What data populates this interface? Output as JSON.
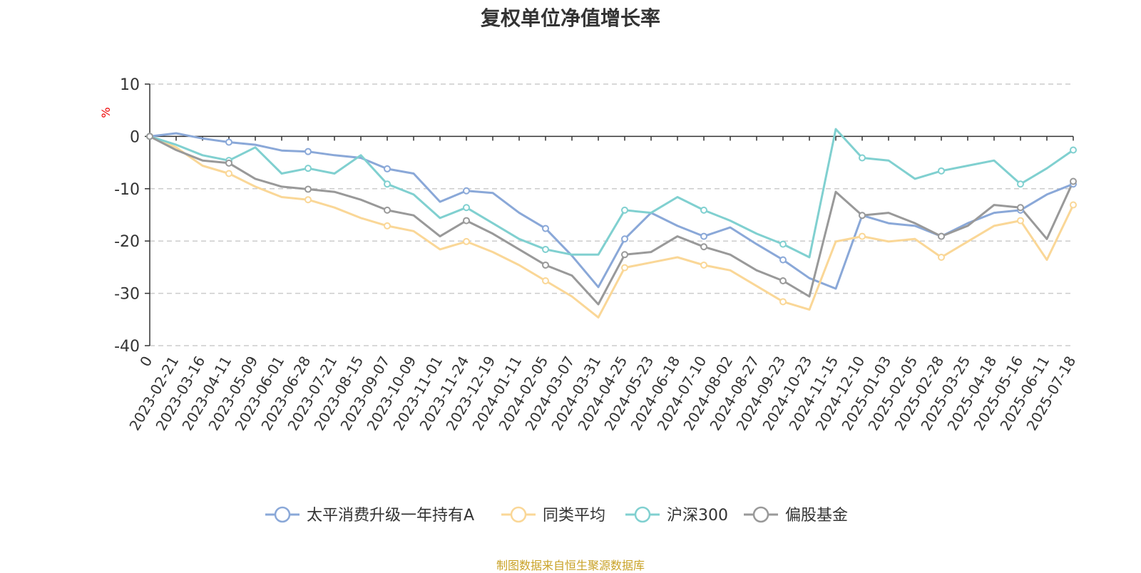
{
  "chart_data": {
    "type": "line",
    "title": "复权单位净值增长率",
    "ylabel": "%",
    "xlabel": "",
    "ylim": [
      -40,
      10
    ],
    "yticks": [
      "10",
      "0",
      "-10",
      "-20",
      "-30",
      "-40"
    ],
    "ytick_values": [
      10,
      0,
      -10,
      -20,
      -30,
      -40
    ],
    "x_tick_labels": [
      "0",
      "2023-02-21",
      "2023-03-16",
      "2023-04-11",
      "2023-05-09",
      "2023-06-01",
      "2023-06-28",
      "2023-07-21",
      "2023-08-15",
      "2023-09-07",
      "2023-10-09",
      "2023-11-01",
      "2023-11-24",
      "2023-12-19",
      "2024-01-11",
      "2024-02-05",
      "2024-03-07",
      "2024-03-31",
      "2024-04-25",
      "2024-05-23",
      "2024-06-18",
      "2024-07-10",
      "2024-08-02",
      "2024-08-27",
      "2024-09-23",
      "2024-10-23",
      "2024-11-15",
      "2024-12-10",
      "2025-01-03",
      "2025-02-05",
      "2025-02-28",
      "2025-03-25",
      "2025-04-18",
      "2025-05-16",
      "2025-06-11",
      "2025-07-18"
    ],
    "grid": "horizontal dashed",
    "legend_position": "bottom",
    "series": [
      {
        "name": "太平消费升级一年持有A",
        "color": "#8aa8d8",
        "values": [
          0,
          0.6,
          -0.4,
          -1.1,
          -1.6,
          -2.7,
          -2.9,
          -3.6,
          -4.1,
          -6.2,
          -7.1,
          -12.5,
          -10.4,
          -10.8,
          -14.6,
          -17.6,
          -22.8,
          -28.8,
          -19.6,
          -14.6,
          -17.1,
          -19.1,
          -17.4,
          -20.6,
          -23.6,
          -27.1,
          -29.1,
          -15.1,
          -16.6,
          -17.1,
          -19.1,
          -16.6,
          -14.6,
          -14.1,
          -11.1,
          -9.1
        ]
      },
      {
        "name": "同类平均",
        "color": "#fad797",
        "values": [
          0,
          -2.1,
          -5.6,
          -7.1,
          -9.6,
          -11.6,
          -12.1,
          -13.6,
          -15.6,
          -17.1,
          -18.1,
          -21.6,
          -20.1,
          -22.1,
          -24.6,
          -27.6,
          -30.6,
          -34.6,
          -25.1,
          -24.1,
          -23.1,
          -24.6,
          -25.6,
          -28.6,
          -31.6,
          -33.1,
          -20.1,
          -19.1,
          -20.1,
          -19.6,
          -23.1,
          -20.1,
          -17.1,
          -16.1,
          -23.6,
          -13.1
        ]
      },
      {
        "name": "沪深300",
        "color": "#80d0d0",
        "values": [
          0,
          -1.6,
          -3.6,
          -4.6,
          -2.1,
          -7.1,
          -6.1,
          -7.1,
          -3.6,
          -9.1,
          -11.1,
          -15.6,
          -13.6,
          -16.6,
          -19.6,
          -21.6,
          -22.6,
          -22.6,
          -14.1,
          -14.6,
          -11.6,
          -14.1,
          -16.1,
          -18.6,
          -20.6,
          -23.1,
          1.4,
          -4.1,
          -4.6,
          -8.1,
          -6.6,
          -5.6,
          -4.6,
          -9.1,
          -6.1,
          -2.6
        ]
      },
      {
        "name": "偏股基金",
        "color": "#999999",
        "values": [
          0,
          -2.6,
          -4.6,
          -5.1,
          -8.1,
          -9.6,
          -10.1,
          -10.6,
          -12.1,
          -14.1,
          -15.1,
          -19.1,
          -16.1,
          -18.6,
          -21.6,
          -24.6,
          -26.6,
          -32.1,
          -22.6,
          -22.1,
          -19.1,
          -21.1,
          -22.6,
          -25.6,
          -27.6,
          -30.6,
          -10.6,
          -15.1,
          -14.6,
          -16.6,
          -19.1,
          -17.1,
          -13.1,
          -13.6,
          -19.6,
          -8.6
        ]
      }
    ]
  },
  "source_note": "制图数据来自恒生聚源数据库"
}
